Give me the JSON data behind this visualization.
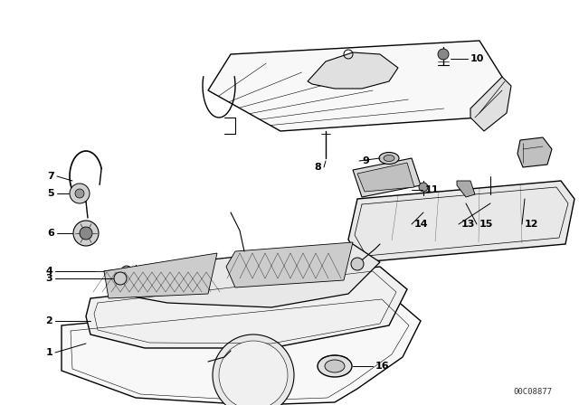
{
  "catalog_number": "00C08877",
  "background_color": "#ffffff",
  "line_color": "#000000",
  "figsize": [
    6.4,
    4.48
  ],
  "dpi": 100
}
